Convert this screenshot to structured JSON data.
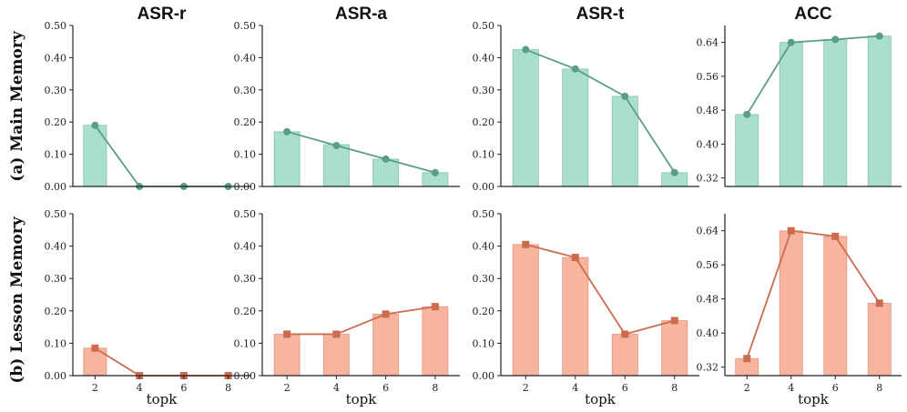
{
  "figure": {
    "row_labels": [
      "(a) Main Memory",
      "(b) Lesson Memory"
    ],
    "xlabel": "topk"
  },
  "colors": {
    "main_bar": "#aadfcd",
    "main_line": "#5a9e88",
    "lesson_bar": "#f7b5a0",
    "lesson_line": "#cd6b4f"
  },
  "chart_data": [
    {
      "type": "bar",
      "row": "(a) Main Memory",
      "title": "ASR-r",
      "categories": [
        "2",
        "4",
        "6",
        "8"
      ],
      "series": [
        {
          "name": "bar",
          "values": [
            0.19,
            0.0,
            0.0,
            0.0
          ]
        },
        {
          "name": "line",
          "values": [
            0.19,
            0.0,
            0.0,
            0.0
          ]
        }
      ],
      "ylim": [
        0,
        0.5
      ],
      "yticks": [
        "0.00",
        "0.10",
        "0.20",
        "0.30",
        "0.40",
        "0.50"
      ],
      "xlabel": "",
      "marker": "circle"
    },
    {
      "type": "bar",
      "row": "(a) Main Memory",
      "title": "ASR-a",
      "categories": [
        "2",
        "4",
        "6",
        "8"
      ],
      "series": [
        {
          "name": "bar",
          "values": [
            0.17,
            0.13,
            0.085,
            0.043
          ]
        },
        {
          "name": "line",
          "values": [
            0.17,
            0.127,
            0.085,
            0.043
          ]
        }
      ],
      "ylim": [
        0,
        0.5
      ],
      "yticks": [
        "0.00",
        "0.10",
        "0.20",
        "0.30",
        "0.40",
        "0.50"
      ],
      "xlabel": "",
      "marker": "circle"
    },
    {
      "type": "bar",
      "row": "(a) Main Memory",
      "title": "ASR-t",
      "categories": [
        "2",
        "4",
        "6",
        "8"
      ],
      "series": [
        {
          "name": "bar",
          "values": [
            0.425,
            0.365,
            0.28,
            0.043
          ]
        },
        {
          "name": "line",
          "values": [
            0.425,
            0.365,
            0.28,
            0.043
          ]
        }
      ],
      "ylim": [
        0,
        0.5
      ],
      "yticks": [
        "0.00",
        "0.10",
        "0.20",
        "0.30",
        "0.40",
        "0.50"
      ],
      "xlabel": "",
      "marker": "circle"
    },
    {
      "type": "bar",
      "row": "(a) Main Memory",
      "title": "ACC",
      "categories": [
        "2",
        "4",
        "6",
        "8"
      ],
      "series": [
        {
          "name": "bar",
          "values": [
            0.47,
            0.64,
            0.647,
            0.655
          ]
        },
        {
          "name": "line",
          "values": [
            0.47,
            0.64,
            0.647,
            0.655
          ]
        }
      ],
      "ylim": [
        0.3,
        0.68
      ],
      "yticks": [
        "0.32",
        "0.40",
        "0.48",
        "0.56",
        "0.64"
      ],
      "xlabel": "",
      "marker": "circle"
    },
    {
      "type": "bar",
      "row": "(b) Lesson Memory",
      "title": "",
      "categories": [
        "2",
        "4",
        "6",
        "8"
      ],
      "series": [
        {
          "name": "bar",
          "values": [
            0.085,
            0.0,
            0.0,
            0.0
          ]
        },
        {
          "name": "line",
          "values": [
            0.085,
            0.0,
            0.0,
            0.0
          ]
        }
      ],
      "ylim": [
        0,
        0.5
      ],
      "yticks": [
        "0.00",
        "0.10",
        "0.20",
        "0.30",
        "0.40",
        "0.50"
      ],
      "xlabel": "topk",
      "marker": "square"
    },
    {
      "type": "bar",
      "row": "(b) Lesson Memory",
      "title": "",
      "categories": [
        "2",
        "4",
        "6",
        "8"
      ],
      "series": [
        {
          "name": "bar",
          "values": [
            0.128,
            0.128,
            0.19,
            0.213
          ]
        },
        {
          "name": "line",
          "values": [
            0.128,
            0.128,
            0.19,
            0.213
          ]
        }
      ],
      "ylim": [
        0,
        0.5
      ],
      "yticks": [
        "0.00",
        "0.10",
        "0.20",
        "0.30",
        "0.40",
        "0.50"
      ],
      "xlabel": "topk",
      "marker": "square"
    },
    {
      "type": "bar",
      "row": "(b) Lesson Memory",
      "title": "",
      "categories": [
        "2",
        "4",
        "6",
        "8"
      ],
      "series": [
        {
          "name": "bar",
          "values": [
            0.405,
            0.365,
            0.128,
            0.17
          ]
        },
        {
          "name": "line",
          "values": [
            0.405,
            0.365,
            0.128,
            0.17
          ]
        }
      ],
      "ylim": [
        0,
        0.5
      ],
      "yticks": [
        "0.00",
        "0.10",
        "0.20",
        "0.30",
        "0.40",
        "0.50"
      ],
      "xlabel": "topk",
      "marker": "square"
    },
    {
      "type": "bar",
      "row": "(b) Lesson Memory",
      "title": "",
      "categories": [
        "2",
        "4",
        "6",
        "8"
      ],
      "series": [
        {
          "name": "bar",
          "values": [
            0.34,
            0.64,
            0.627,
            0.47
          ]
        },
        {
          "name": "line",
          "values": [
            0.34,
            0.64,
            0.627,
            0.47
          ]
        }
      ],
      "ylim": [
        0.3,
        0.68
      ],
      "yticks": [
        "0.32",
        "0.40",
        "0.48",
        "0.56",
        "0.64"
      ],
      "xlabel": "topk",
      "marker": "square"
    }
  ]
}
